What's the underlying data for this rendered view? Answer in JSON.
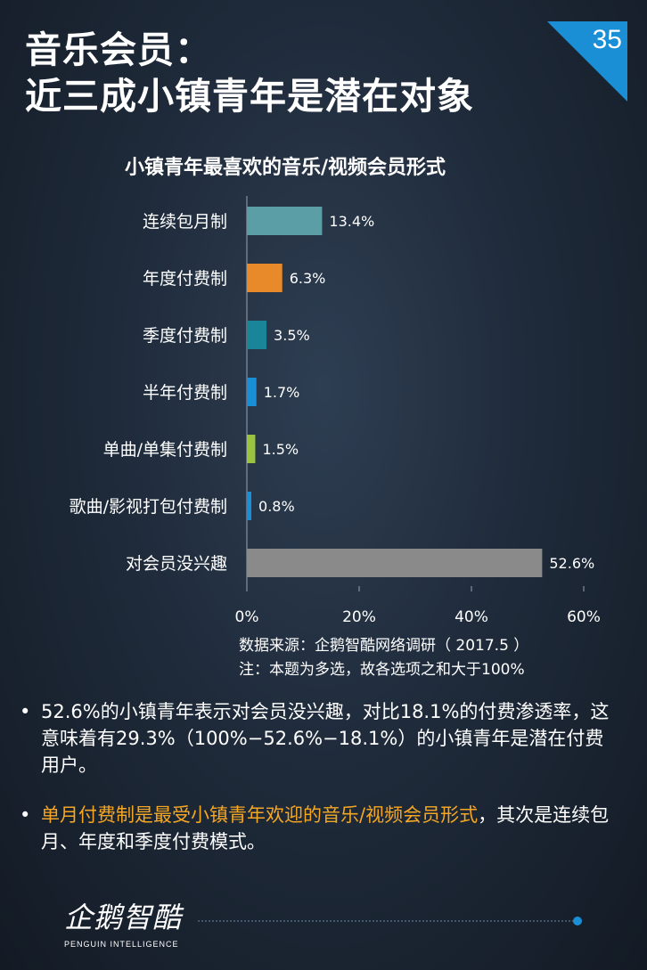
{
  "page": {
    "title_line1": "音乐会员：",
    "title_line2": "近三成小镇青年是潜在对象",
    "page_number": "35"
  },
  "chart_data": {
    "type": "bar",
    "orientation": "horizontal",
    "title": "小镇青年最喜欢的音乐/视频会员形式",
    "categories": [
      "连续包月制",
      "年度付费制",
      "季度付费制",
      "半年付费制",
      "单曲/单集付费制",
      "歌曲/影视打包付费制",
      "对会员没兴趣"
    ],
    "values": [
      13.4,
      6.3,
      3.5,
      1.7,
      1.5,
      0.8,
      52.6
    ],
    "value_labels": [
      "13.4%",
      "6.3%",
      "3.5%",
      "1.7%",
      "1.5%",
      "0.8%",
      "52.6%"
    ],
    "colors": [
      "#5b9ea6",
      "#e8892a",
      "#1a8499",
      "#1b8fd6",
      "#9ac43e",
      "#1b8fd6",
      "#8a8a8a"
    ],
    "xlim": [
      0,
      60
    ],
    "ticks": [
      0,
      20,
      40,
      60
    ],
    "tick_labels": [
      "0%",
      "20%",
      "40%",
      "60%"
    ],
    "grid": false
  },
  "source": {
    "line1": "数据来源：企鹅智酷网络调研（   2017.5 ）",
    "line2": "注：本题为多选，故各选项之和大于100%"
  },
  "bullets": {
    "b1": "52.6%的小镇青年表示对会员没兴趣，对比18.1%的付费渗透率，这意味着有29.3%（100%−52.6%−18.1%）的小镇青年是潜在付费用户。",
    "b2_highlight": "单月付费制是最受小镇青年欢迎的音乐/视频会员形式",
    "b2_rest": "，其次是连续包月、年度和季度付费模式。",
    "marker": "•"
  },
  "logo": {
    "name": "企鹅智酷",
    "sub": "PENGUIN INTELLIGENCE"
  },
  "colors": {
    "accent_blue": "#1b8fd6",
    "highlight": "#f5a623"
  }
}
